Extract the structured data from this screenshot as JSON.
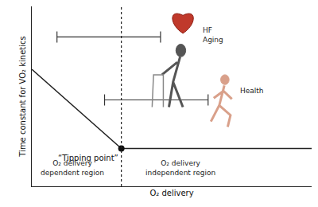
{
  "chart_data": {
    "type": "line",
    "x_title": "O₂ delivery",
    "y_title": "Time constant for VO₂ kinetics",
    "xlim": [
      0,
      10
    ],
    "ylim": [
      0,
      10
    ],
    "xticks": [],
    "yticks": [],
    "tick_labels": false,
    "grid": false,
    "series": [
      {
        "x": [
          0,
          3.2,
          10
        ],
        "values": [
          6.5,
          2.1,
          2.1
        ],
        "color": "#222222",
        "line_style": "solid"
      }
    ],
    "tipping_point": {
      "x": 3.2,
      "y": 2.1,
      "label": "“Tipping point”",
      "line_style": "dot"
    },
    "ranges": [
      {
        "lines": [
          "HF",
          "Aging"
        ],
        "x": [
          0.9,
          4.6
        ],
        "y": 8.3
      },
      {
        "lines": [
          "Health"
        ],
        "x": [
          2.6,
          6.3
        ],
        "y": 4.8
      }
    ],
    "regions": [
      {
        "lines": [
          "O₂ delivery",
          "dependent region"
        ]
      },
      {
        "lines": [
          "O₂ delivery",
          "independent region"
        ]
      }
    ]
  }
}
